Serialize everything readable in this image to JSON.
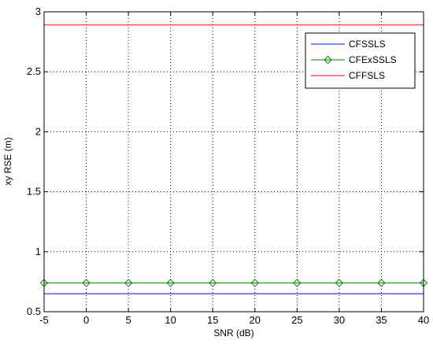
{
  "chart_data": {
    "type": "line",
    "title": "",
    "xlabel": "SNR (dB)",
    "ylabel": "xy RSE (m)",
    "xlim": [
      -5,
      40
    ],
    "ylim": [
      0.5,
      3
    ],
    "x_ticks": [
      -5,
      0,
      5,
      10,
      15,
      20,
      25,
      30,
      35,
      40
    ],
    "x_tick_labels": [
      "-5",
      "0",
      "5",
      "10",
      "15",
      "20",
      "25",
      "30",
      "35",
      "40"
    ],
    "y_ticks": [
      0.5,
      1,
      1.5,
      2,
      2.5,
      3
    ],
    "y_tick_labels": [
      "0.5",
      "1",
      "1.5",
      "2",
      "2.5",
      "3"
    ],
    "grid": true,
    "grid_style": "dotted",
    "legend_position": "top-right",
    "x": [
      -5,
      0,
      5,
      10,
      15,
      20,
      25,
      30,
      35,
      40
    ],
    "series": [
      {
        "name": "CFSSLS",
        "color": "#0000ff",
        "marker": "none",
        "values": [
          0.65,
          0.65,
          0.65,
          0.65,
          0.65,
          0.65,
          0.65,
          0.65,
          0.65,
          0.65
        ]
      },
      {
        "name": "CFExSSLS",
        "color": "#008000",
        "marker": "diamond",
        "values": [
          0.74,
          0.74,
          0.74,
          0.74,
          0.74,
          0.74,
          0.74,
          0.74,
          0.74,
          0.74
        ]
      },
      {
        "name": "CFFSLS",
        "color": "#ff0000",
        "marker": "none",
        "values": [
          2.89,
          2.89,
          2.89,
          2.89,
          2.89,
          2.89,
          2.89,
          2.89,
          2.89,
          2.89
        ]
      }
    ]
  }
}
